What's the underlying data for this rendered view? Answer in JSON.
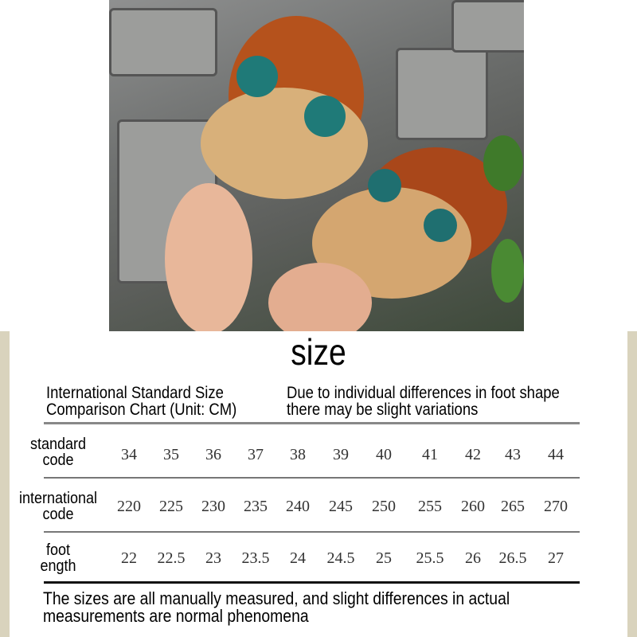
{
  "title": "size",
  "header": {
    "left_line1": "International Standard Size",
    "left_line2": "Comparison Chart (Unit: CM)",
    "right_line1": "Due to individual differences in foot shape",
    "right_line2": "there may be slight variations"
  },
  "table": {
    "rows": [
      {
        "label1": "standard",
        "label2": "code",
        "values": [
          "34",
          "35",
          "36",
          "37",
          "38",
          "39",
          "40",
          "41",
          "42",
          "43",
          "44"
        ]
      },
      {
        "label1": "international",
        "label2": "code",
        "values": [
          "220",
          "225",
          "230",
          "235",
          "240",
          "245",
          "250",
          "255",
          "260",
          "265",
          "270"
        ]
      },
      {
        "label1": "foot",
        "label2": "ength",
        "values": [
          "22",
          "22.5",
          "23",
          "23.5",
          "24",
          "24.5",
          "25",
          "25.5",
          "26",
          "26.5",
          "27"
        ]
      }
    ]
  },
  "footer": {
    "line1": "The sizes are all manually measured, and slight differences in actual",
    "line2": "measurements are normal phenomena"
  },
  "colors": {
    "border_beige": "#d9d3bd",
    "slipper_orange": "#c8561a",
    "fur": "#d8b07a"
  }
}
